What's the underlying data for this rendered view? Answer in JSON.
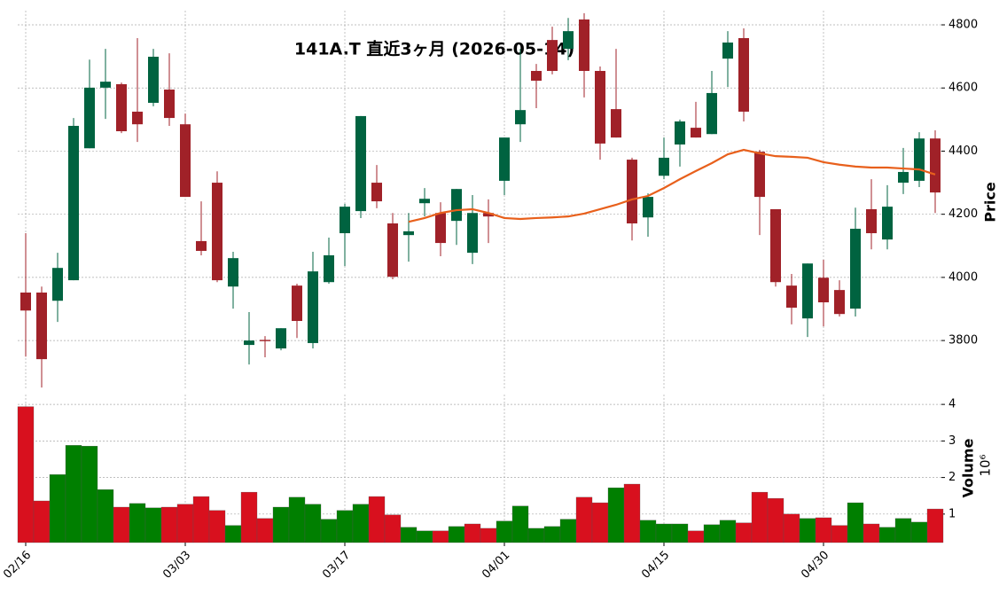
{
  "chart_data": {
    "type": "candlestick",
    "title": "141A.T  直近3ヶ月  (2026-05-14)",
    "categories": [
      "02/16",
      null,
      null,
      null,
      null,
      null,
      null,
      null,
      null,
      null,
      "03/03",
      null,
      null,
      null,
      null,
      null,
      null,
      null,
      null,
      null,
      "03/17",
      null,
      null,
      null,
      null,
      null,
      null,
      null,
      null,
      null,
      "04/01",
      null,
      null,
      null,
      null,
      null,
      null,
      null,
      null,
      null,
      "04/15",
      null,
      null,
      null,
      null,
      null,
      null,
      null,
      null,
      null,
      "04/30",
      null,
      null,
      null,
      null,
      null,
      null,
      null
    ],
    "open": [
      3952,
      3952,
      3926,
      3991,
      4409,
      4601,
      4612,
      4525,
      4553,
      4595,
      4485,
      4115,
      4300,
      3971,
      3786,
      3802,
      3775,
      3974,
      3792,
      3985,
      4140,
      4210,
      4300,
      4171,
      4134,
      4235,
      4204,
      4179,
      4078,
      4204,
      4306,
      4485,
      4654,
      4752,
      4724,
      4817,
      4654,
      4533,
      4373,
      4190,
      4322,
      4421,
      4474,
      4454,
      4693,
      4758,
      4398,
      4216,
      3974,
      3870,
      3999,
      3960,
      3901,
      4216,
      4120,
      4300,
      4306,
      4440
    ],
    "high": [
      4140,
      3971,
      4078,
      4505,
      4690,
      4724,
      4617,
      4758,
      4724,
      4710,
      4519,
      4241,
      4336,
      4081,
      3890,
      3814,
      3839,
      3980,
      4081,
      4126,
      4233,
      4511,
      4356,
      4204,
      4204,
      4283,
      4238,
      4280,
      4261,
      4247,
      4443,
      4724,
      4676,
      4794,
      4822,
      4837,
      4668,
      4724,
      4379,
      4266,
      4443,
      4500,
      4556,
      4654,
      4780,
      4789,
      4404,
      4216,
      4011,
      4044,
      4056,
      3991,
      4221,
      4311,
      4292,
      4410,
      4460,
      4466
    ],
    "low": [
      3749,
      3651,
      3859,
      3991,
      4409,
      4502,
      4457,
      4429,
      4542,
      4480,
      4255,
      4070,
      3985,
      3901,
      3724,
      3747,
      3769,
      3808,
      3775,
      3980,
      4036,
      4188,
      4219,
      3994,
      4050,
      4193,
      4067,
      4103,
      4042,
      4109,
      4261,
      4429,
      4536,
      4643,
      4688,
      4570,
      4373,
      4443,
      4117,
      4129,
      4311,
      4351,
      4443,
      4454,
      4603,
      4494,
      4134,
      3971,
      3851,
      3811,
      3845,
      3876,
      3876,
      4089,
      4089,
      4264,
      4286,
      4204
    ],
    "close": [
      3895,
      3741,
      4030,
      4480,
      4601,
      4620,
      4463,
      4485,
      4699,
      4505,
      4255,
      4084,
      3991,
      4061,
      3800,
      3798,
      3839,
      3862,
      4019,
      4070,
      4224,
      4511,
      4241,
      4002,
      4146,
      4249,
      4109,
      4280,
      4204,
      4193,
      4443,
      4530,
      4623,
      4654,
      4780,
      4654,
      4424,
      4443,
      4171,
      4255,
      4379,
      4494,
      4443,
      4584,
      4744,
      4525,
      4255,
      3985,
      3904,
      4044,
      3921,
      3884,
      4154,
      4140,
      4224,
      4334,
      4440,
      4269
    ],
    "up_color": "#006340",
    "down_color": "#a02128",
    "ma": {
      "color": "#e8601c",
      "values": [
        null,
        null,
        null,
        null,
        null,
        null,
        null,
        null,
        null,
        null,
        null,
        null,
        null,
        null,
        null,
        null,
        null,
        null,
        null,
        null,
        null,
        null,
        null,
        null,
        4176,
        4188,
        4204,
        4213,
        4216,
        4204,
        4188,
        4185,
        4188,
        4190,
        4193,
        4202,
        4216,
        4230,
        4247,
        4258,
        4283,
        4311,
        4337,
        4362,
        4390,
        4404,
        4393,
        4384,
        4382,
        4379,
        4365,
        4357,
        4351,
        4348,
        4348,
        4345,
        4342,
        4326
      ]
    },
    "ylabel": "Price",
    "ylim": [
      3643,
      4845
    ],
    "yticks": [
      3800,
      4000,
      4200,
      4400,
      4600,
      4800
    ],
    "grid": true,
    "volume": {
      "ylabel": "Volume",
      "scale_label": "10⁶",
      "up_color": "#007f00",
      "down_color": "#d8101e",
      "values": [
        3.94,
        1.36,
        2.08,
        2.88,
        2.86,
        1.67,
        1.19,
        1.29,
        1.17,
        1.19,
        1.27,
        1.48,
        1.1,
        0.69,
        1.6,
        0.88,
        1.19,
        1.46,
        1.27,
        0.86,
        1.1,
        1.27,
        1.48,
        0.98,
        0.64,
        0.54,
        0.54,
        0.66,
        0.73,
        0.61,
        0.81,
        1.22,
        0.61,
        0.66,
        0.86,
        1.46,
        1.31,
        1.72,
        1.82,
        0.83,
        0.73,
        0.73,
        0.54,
        0.71,
        0.83,
        0.76,
        1.6,
        1.43,
        1.0,
        0.88,
        0.9,
        0.69,
        1.31,
        0.73,
        0.64,
        0.88,
        0.78,
        1.14
      ],
      "ylim": [
        0.22,
        4.27
      ],
      "yticks": [
        1,
        2,
        3,
        4
      ]
    }
  }
}
